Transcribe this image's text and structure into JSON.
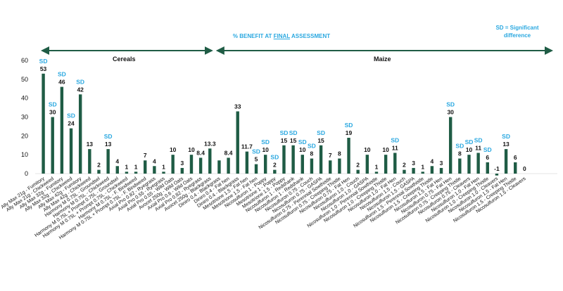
{
  "header": {
    "title_prefix": "% BENEFIT AT ",
    "title_underlined": "FINAL",
    "title_suffix": " ASSESSMENT",
    "sd_note_line1": "SD = Significant",
    "sd_note_line2": "difference"
  },
  "segments": [
    {
      "label": "Cereals"
    },
    {
      "label": "Maize"
    }
  ],
  "colors": {
    "bar": "#1f5c45",
    "sd": "#2aa8e0",
    "arrow": "#1f5c45",
    "text": "#111111"
  },
  "chart_data": {
    "type": "bar",
    "ylim": [
      0,
      60
    ],
    "yticks": [
      0,
      10,
      20,
      30,
      40,
      50,
      60
    ],
    "sd_label": "SD",
    "segment_split_after_index": 18,
    "categories": [
      "Ally Max 21g - Fumitory",
      "Ally Max 21g - Chickweed",
      "Ally Max 32g - Fumitory",
      "Ally Max 32g - Chickweed",
      "Ally Max 42g - Fumitory",
      "Ally Max 42g - Chickweed",
      "Harmony M 0.75L - Groundsel",
      "Harmony M 0.75L - Chickweed",
      "Harmony M 0.75L + Prompt 0.75L - Groundsel",
      "Harmony M 0.75L + Prompt 0.75L - Chickweed",
      "Harmony M 0.75L - F. Bindweed",
      "Harmony M 0.75L + Prompt 0.75L - F. Bindweed",
      "Axial Pro 0.82 - Ryegrass",
      "Axial Pro 0.55 - Ryegrass",
      "Axial Pro 0.55 - Wild Oats",
      "Avocet 250g - Wild Oats",
      "Axial Pro 0.6 - Wild Oats",
      "Axial Pro 0.82 - Ryegrass",
      "Avocet 250g - Blackgrass",
      "Diniro 0.4 - Blackgrass",
      "Diniro 0.4 - Fat hen",
      "Diniro 0.4 - Blackgrass",
      "Mesotrione 1.5 - Fat hen",
      "Mesotrione 1.5 - Fat hen",
      "Nicosulfuron 1 - Poppy",
      "Mesotrione 1 - Poppy",
      "Mesotrione 1.5 - Poppy",
      "Nicosulfuron 1 - Redshank",
      "Nicosulfuron 1 - Redshank",
      "Nicosulfuron 0.75 - Couch",
      "Nicosulfuron 0.75 - GASPA",
      "Nicosulfuron 0.75 - Perennial Sowthistle",
      "Nicosulfuron 0.75 - Creeping Thistle",
      "Nicosulfuron 0.75 - Fat Hen",
      "Nicosulfuron 1.0 - Couch",
      "Nicosulfuron 1.0 - GASPA",
      "Nicosulfuron 1.0 - Perennial Sowthistle",
      "Nicosulfuron 1.0 - Creeping Thistle",
      "Nicosulfuron 1.0 - Fat Hen",
      "Nicosulfuron 1.5 - Couch",
      "Nicosulfuron 1.5 - GASPA",
      "Nicosulfuron 1.5 - Perennial Sowthistle",
      "Nicosulfuron 1.5 - Creeping Thistle",
      "Nicosulfuron 1.5 - Fat Hen",
      "Nicosulfuron 0.75 - Fat Hen",
      "Nicosulfuron 0.75 - Creeping Thistle",
      "Nicosulfuron 0.75 - Cleavers",
      "Nicosulfuron 1.0 - Fat Hen",
      "Nicosulfuron 1.0 - Creeping Thistle",
      "Nicosulfuron 1.0 - Cleavers",
      "Nicosulfuron 1.5 - Fat Hen",
      "Nicosulfuron 1.5 - Creeping Thistle",
      "Nicosulfuron 1.5 - Cleavers"
    ],
    "values": [
      53,
      30,
      46,
      24,
      42,
      13,
      2,
      13,
      4,
      1,
      1,
      7,
      4,
      1,
      10,
      3,
      10,
      8.4,
      13.3,
      7,
      8.4,
      33,
      11.7,
      5,
      10,
      2,
      15,
      15,
      10,
      8,
      15,
      7,
      8,
      19,
      2,
      10,
      1,
      10,
      11,
      2,
      3,
      1,
      4,
      3,
      30,
      8,
      10,
      11,
      6,
      -1,
      13,
      6,
      0
    ],
    "value_labels": [
      "53",
      "30",
      "46",
      "24",
      "42",
      "13",
      "2",
      "13",
      "4",
      "1",
      "1",
      "7",
      "4",
      "1",
      "10",
      "3",
      "10",
      "8.4",
      "13.3",
      "",
      "8.4",
      "33",
      "11.7",
      "5",
      "10",
      "2",
      "15",
      "15",
      "10",
      "8",
      "15",
      "7",
      "8",
      "19",
      "2",
      "10",
      "1",
      "10",
      "11",
      "2",
      "3",
      "1",
      "4",
      "3",
      "30",
      "8",
      "10",
      "11",
      "6",
      "-1",
      "13",
      "6",
      "0"
    ],
    "sd": [
      true,
      true,
      true,
      true,
      true,
      false,
      false,
      true,
      false,
      false,
      false,
      false,
      false,
      false,
      false,
      false,
      false,
      false,
      false,
      false,
      false,
      false,
      false,
      true,
      true,
      true,
      true,
      true,
      true,
      true,
      true,
      false,
      false,
      true,
      false,
      false,
      false,
      false,
      true,
      false,
      false,
      false,
      false,
      false,
      true,
      true,
      true,
      true,
      true,
      false,
      true,
      false,
      false
    ]
  }
}
